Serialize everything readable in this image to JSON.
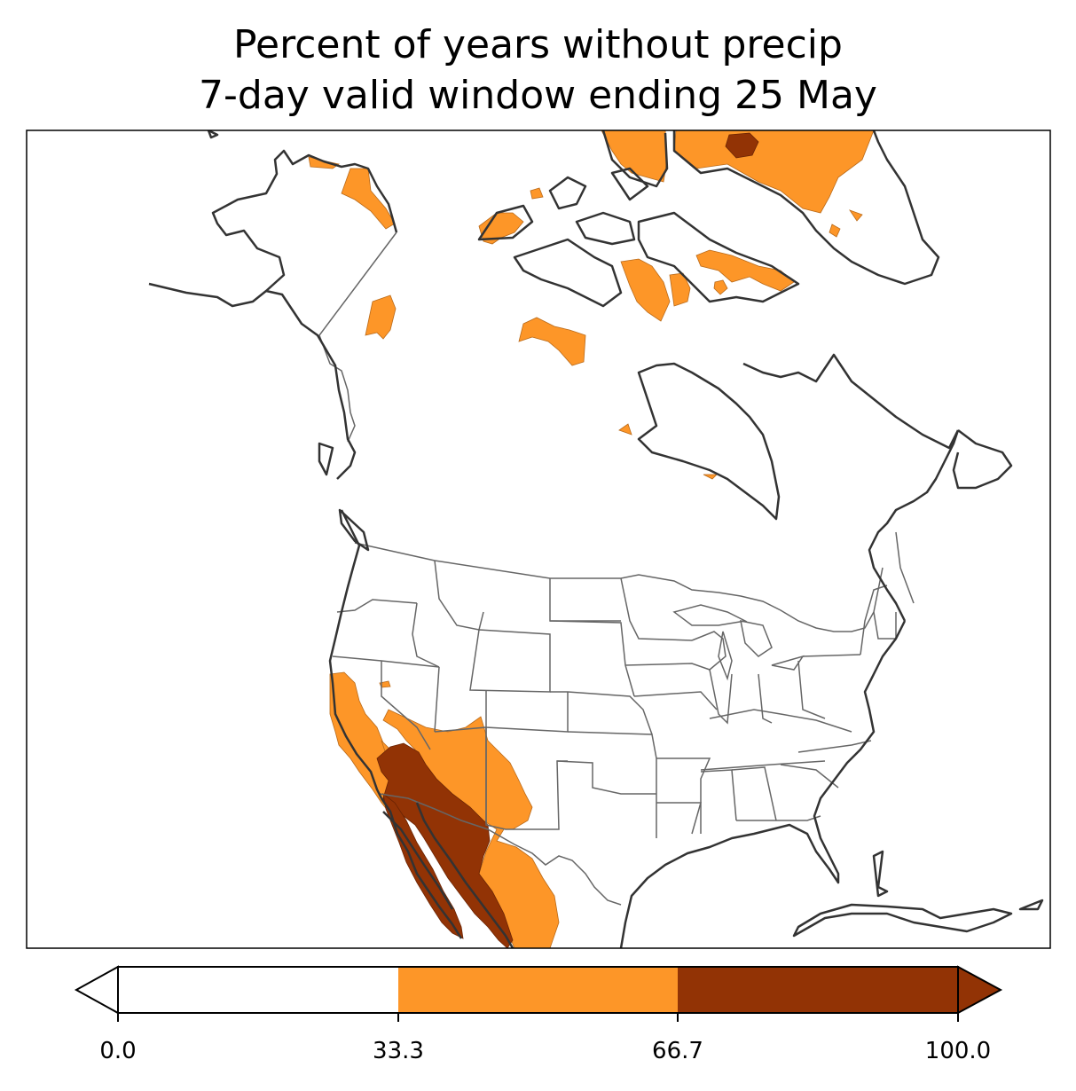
{
  "title": {
    "line1": "Percent of years without precip",
    "line2": "7-day valid window ending 25 May"
  },
  "colorbar": {
    "ticks": [
      "0.0",
      "33.3",
      "66.7",
      "100.0"
    ],
    "bins": [
      {
        "range": [
          0.0,
          33.3
        ],
        "color": "#ffffff"
      },
      {
        "range": [
          33.3,
          66.7
        ],
        "color": "#fd9628"
      },
      {
        "range": [
          66.7,
          100.0
        ],
        "color": "#923305"
      }
    ],
    "extend": "both"
  },
  "colors": {
    "low": "#ffffff",
    "mid": "#fd9628",
    "high": "#923305",
    "coastline": "#333333",
    "borders": "#666666"
  }
}
